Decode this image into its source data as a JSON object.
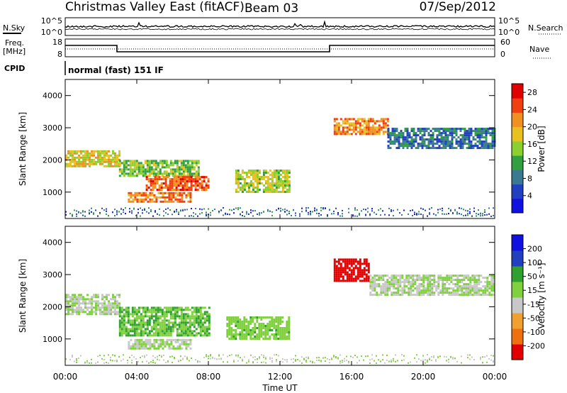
{
  "header": {
    "title": "Christmas Valley East (fitACF)",
    "beam": "Beam 03",
    "date": "07/Sep/2012"
  },
  "sky_panel": {
    "left_label": "N.Sky",
    "right_label": "N.Search",
    "left_ticks": [
      "10^5",
      "10^0"
    ],
    "right_ticks": [
      "10^5",
      "10^0"
    ]
  },
  "freq_panel": {
    "left_label_1": "Freq.",
    "left_label_2": "[MHz]",
    "right_label": "Nave",
    "left_ticks": [
      "18",
      "8"
    ],
    "right_ticks": [
      "60",
      "0"
    ]
  },
  "cpid": {
    "label": "CPID",
    "value": "normal (fast) 151 IF"
  },
  "chart_data": [
    {
      "type": "heatmap",
      "name": "Power",
      "ylabel": "Slant Range [km]",
      "xlabel": "",
      "xlim": [
        "00:00",
        "24:00"
      ],
      "ylim": [
        180,
        4500
      ],
      "yticks": [
        "1000",
        "2000",
        "3000",
        "4000"
      ],
      "colorbar_label": "Power [dB]",
      "colorbar_ticks": [
        "4",
        "8",
        "12",
        "16",
        "20",
        "24",
        "28"
      ],
      "colorbar_range": [
        0,
        30
      ],
      "colors": [
        "#1010e0",
        "#2040c0",
        "#3a7a90",
        "#30a040",
        "#8cd030",
        "#e8c020",
        "#f09020",
        "#f04010",
        "#e00000"
      ],
      "features": [
        {
          "start_h": 0.0,
          "end_h": 3.0,
          "range_from_km": 1800,
          "range_to_km": 2300,
          "value": 18
        },
        {
          "start_h": 3.0,
          "end_h": 7.5,
          "range_from_km": 1500,
          "range_to_km": 2000,
          "value": 14
        },
        {
          "start_h": 4.5,
          "end_h": 8.0,
          "range_from_km": 1100,
          "range_to_km": 1500,
          "value": 24
        },
        {
          "start_h": 3.5,
          "end_h": 7.0,
          "range_from_km": 700,
          "range_to_km": 1000,
          "value": 22
        },
        {
          "start_h": 9.5,
          "end_h": 12.5,
          "range_from_km": 1000,
          "range_to_km": 1700,
          "value": 16
        },
        {
          "start_h": 15.0,
          "end_h": 18.0,
          "range_from_km": 2800,
          "range_to_km": 3300,
          "value": 22
        },
        {
          "start_h": 18.0,
          "end_h": 24.0,
          "range_from_km": 2400,
          "range_to_km": 3000,
          "value": 8
        }
      ]
    },
    {
      "type": "heatmap",
      "name": "Velocity",
      "ylabel": "Slant Range [km]",
      "xlabel": "Time UT",
      "xlim": [
        "00:00",
        "24:00"
      ],
      "xticks": [
        "00:00",
        "04:00",
        "08:00",
        "12:00",
        "16:00",
        "20:00",
        "00:00"
      ],
      "ylim": [
        180,
        4500
      ],
      "yticks": [
        "1000",
        "2000",
        "3000",
        "4000"
      ],
      "colorbar_label": "Velocity [m s⁻¹]",
      "colorbar_ticks": [
        "200",
        "100",
        "50",
        "15",
        "-15",
        "-50",
        "-100",
        "-200"
      ],
      "colorbar_range": [
        -250,
        250
      ],
      "colors": [
        "#e00000",
        "#f07010",
        "#f0a030",
        "#c8c8c8",
        "#80d040",
        "#30a030",
        "#2040c0",
        "#1010e0"
      ],
      "features": [
        {
          "start_h": 0.0,
          "end_h": 3.0,
          "range_from_km": 1800,
          "range_to_km": 2400,
          "value": 0
        },
        {
          "start_h": 3.0,
          "end_h": 8.0,
          "range_from_km": 1100,
          "range_to_km": 2000,
          "value": 60
        },
        {
          "start_h": 3.5,
          "end_h": 7.0,
          "range_from_km": 700,
          "range_to_km": 1000,
          "value": 0
        },
        {
          "start_h": 9.0,
          "end_h": 12.5,
          "range_from_km": 1000,
          "range_to_km": 1700,
          "value": 45
        },
        {
          "start_h": 15.0,
          "end_h": 17.0,
          "range_from_km": 2800,
          "range_to_km": 3500,
          "value": -220
        },
        {
          "start_h": 17.0,
          "end_h": 24.0,
          "range_from_km": 2400,
          "range_to_km": 3000,
          "value": 0
        }
      ]
    }
  ]
}
